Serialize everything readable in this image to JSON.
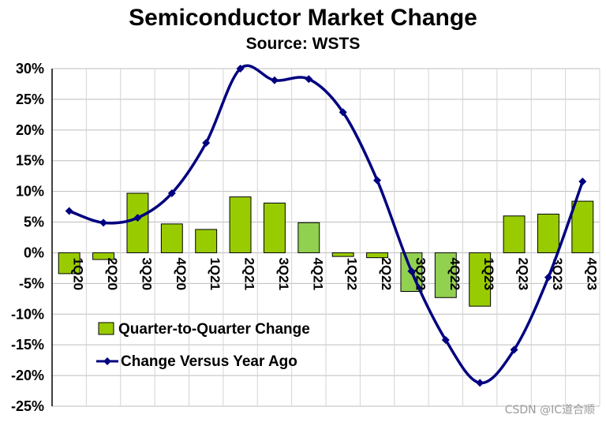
{
  "chart_data": {
    "type": "bar",
    "title": "Semiconductor Market Change",
    "subtitle": "Source: WSTS",
    "categories": [
      "1Q20",
      "2Q20",
      "3Q20",
      "4Q20",
      "1Q21",
      "2Q21",
      "3Q21",
      "4Q21",
      "1Q22",
      "2Q22",
      "3Q22",
      "4Q22",
      "1Q23",
      "2Q23",
      "3Q23",
      "4Q23"
    ],
    "series": [
      {
        "name": "Quarter-to-Quarter Change",
        "type": "bar",
        "color": "#99cc00",
        "highlight_color": "#92d050",
        "values": [
          -3.4,
          -1.1,
          9.7,
          4.7,
          3.8,
          9.1,
          8.1,
          4.9,
          -0.6,
          -0.8,
          -6.3,
          -7.3,
          -8.7,
          6.0,
          6.3,
          8.4
        ]
      },
      {
        "name": "Change Versus Year Ago",
        "type": "line",
        "color": "#000080",
        "values": [
          6.8,
          4.9,
          5.7,
          9.7,
          17.9,
          30.0,
          28.1,
          28.3,
          22.9,
          11.8,
          -3.0,
          -14.2,
          -21.2,
          -15.8,
          -4.0,
          11.6
        ]
      }
    ],
    "y_ticks": [
      "30%",
      "25%",
      "20%",
      "15%",
      "10%",
      "5%",
      "0%",
      "-5%",
      "-10%",
      "-15%",
      "-20%",
      "-25%"
    ],
    "ylim": [
      -25,
      30
    ],
    "xlabel": "",
    "ylabel": "",
    "grid": true,
    "legend_position": "bottom-left"
  },
  "watermark": "CSDN @IC道合顺"
}
